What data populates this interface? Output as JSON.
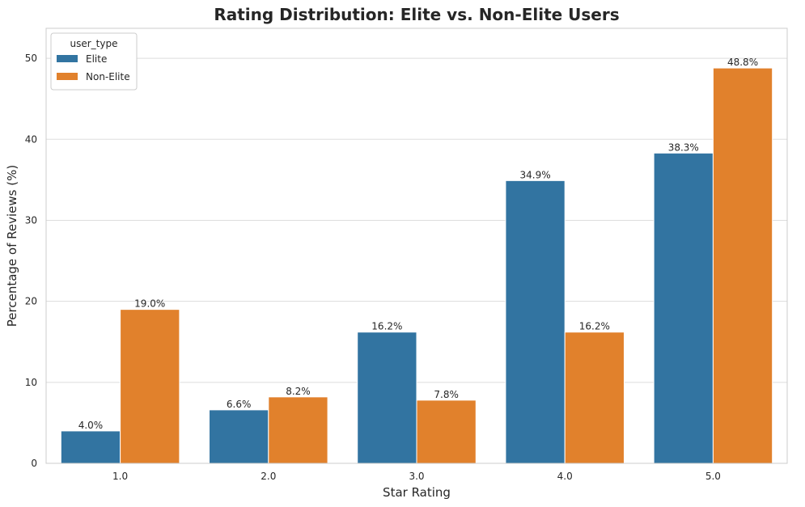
{
  "chart_data": {
    "type": "bar",
    "title": "Rating Distribution: Elite vs. Non-Elite Users",
    "xlabel": "Star Rating",
    "ylabel": "Percentage of Reviews (%)",
    "categories": [
      "1.0",
      "2.0",
      "3.0",
      "4.0",
      "5.0"
    ],
    "series": [
      {
        "name": "Elite",
        "color": "#3274a1",
        "values": [
          4.0,
          6.6,
          16.2,
          34.9,
          38.3
        ],
        "labels": [
          "4.0%",
          "6.6%",
          "16.2%",
          "34.9%",
          "38.3%"
        ]
      },
      {
        "name": "Non-Elite",
        "color": "#e1812c",
        "values": [
          19.0,
          8.2,
          7.8,
          16.2,
          48.8
        ],
        "labels": [
          "19.0%",
          "8.2%",
          "7.8%",
          "16.2%",
          "48.8%"
        ]
      }
    ],
    "ylim": [
      0,
      53.7
    ],
    "yticks": [
      0,
      10,
      20,
      30,
      40,
      50
    ],
    "ytick_labels": [
      "0",
      "10",
      "20",
      "30",
      "40",
      "50"
    ],
    "grid": true,
    "legend": {
      "title": "user_type",
      "placement": "top-left"
    }
  }
}
